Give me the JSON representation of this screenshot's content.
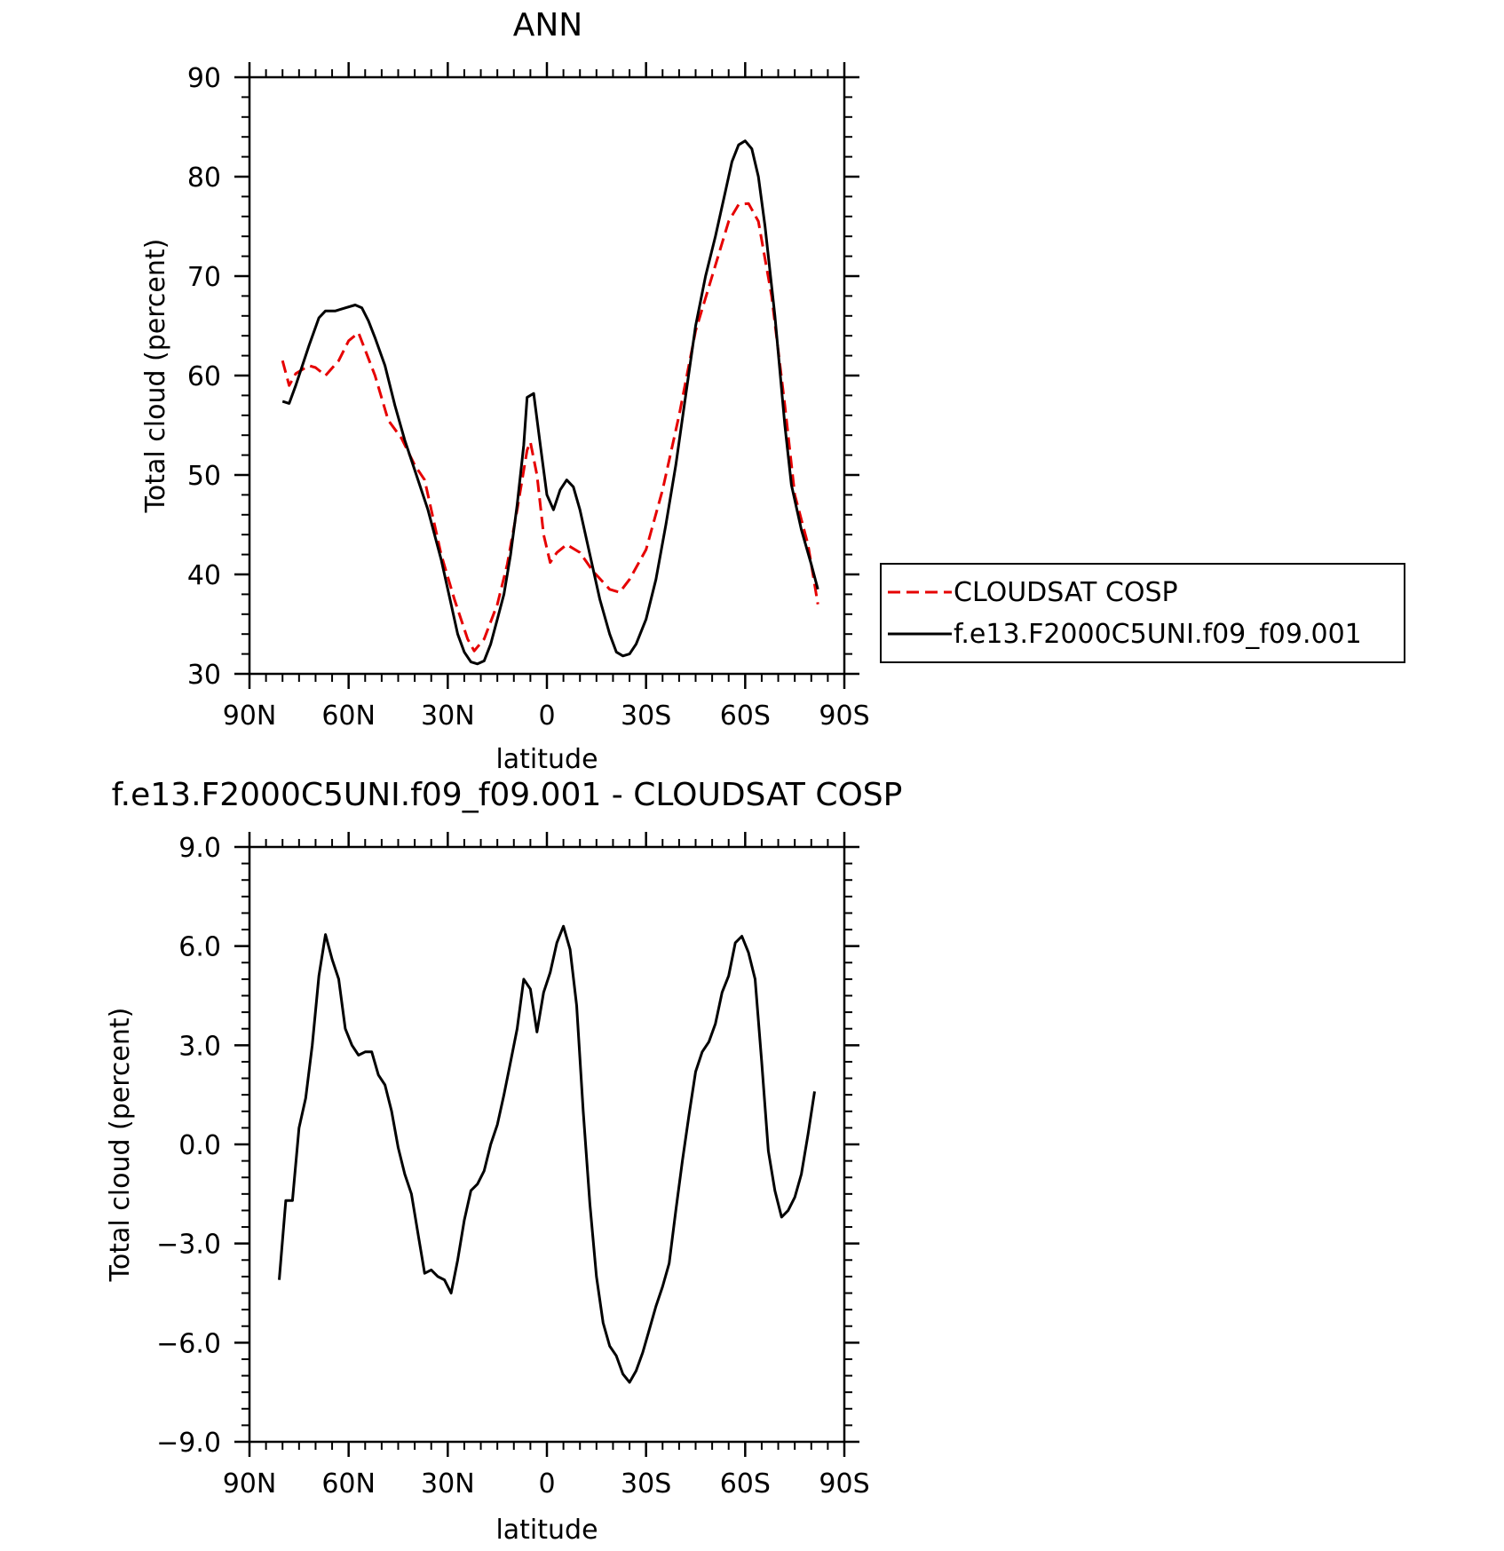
{
  "chart_data": [
    {
      "type": "line",
      "title": "ANN",
      "xlabel": "latitude",
      "ylabel": "Total cloud (percent)",
      "ylim": [
        30,
        90
      ],
      "xlim": [
        90,
        -90
      ],
      "x_unit": "degrees latitude (positive = N, negative = S)",
      "xticks": [
        90,
        60,
        30,
        0,
        -30,
        -60,
        -90
      ],
      "xtick_labels": [
        "90N",
        "60N",
        "30N",
        "0",
        "30S",
        "60S",
        "90S"
      ],
      "yticks": [
        30,
        40,
        50,
        60,
        70,
        80,
        90
      ],
      "ytick_labels": [
        "30",
        "40",
        "50",
        "60",
        "70",
        "80",
        "90"
      ],
      "legend_position": "right",
      "grid": false,
      "series": [
        {
          "name": "CLOUDSAT COSP",
          "color": "#e60000",
          "dash": "dashed",
          "points": [
            [
              80,
              61.5
            ],
            [
              78,
              59.0
            ],
            [
              76,
              60.2
            ],
            [
              72,
              61.0
            ],
            [
              70,
              60.8
            ],
            [
              67,
              60.0
            ],
            [
              63,
              61.5
            ],
            [
              60,
              63.5
            ],
            [
              57,
              64.3
            ],
            [
              52,
              60.0
            ],
            [
              48,
              55.5
            ],
            [
              44,
              53.7
            ],
            [
              40,
              51.0
            ],
            [
              37,
              49.5
            ],
            [
              32,
              42.0
            ],
            [
              28,
              37.5
            ],
            [
              24,
              33.5
            ],
            [
              22,
              32.3
            ],
            [
              19,
              33.5
            ],
            [
              15,
              37.0
            ],
            [
              12,
              41.0
            ],
            [
              9,
              46.5
            ],
            [
              6,
              52.5
            ],
            [
              5,
              53.3
            ],
            [
              3,
              50.0
            ],
            [
              1,
              44.0
            ],
            [
              -1,
              41.2
            ],
            [
              -3,
              42.2
            ],
            [
              -6,
              43.0
            ],
            [
              -10,
              42.2
            ],
            [
              -14,
              40.3
            ],
            [
              -19,
              38.5
            ],
            [
              -22,
              38.2
            ],
            [
              -25,
              39.5
            ],
            [
              -30,
              42.5
            ],
            [
              -35,
              48.5
            ],
            [
              -40,
              56.0
            ],
            [
              -45,
              64.5
            ],
            [
              -50,
              70.0
            ],
            [
              -55,
              75.5
            ],
            [
              -58,
              77.2
            ],
            [
              -61,
              77.3
            ],
            [
              -64,
              75.5
            ],
            [
              -68,
              68.0
            ],
            [
              -72,
              57.0
            ],
            [
              -75,
              48.0
            ],
            [
              -79,
              43.0
            ],
            [
              -82,
              37.0
            ]
          ]
        },
        {
          "name": "f.e13.F2000C5UNI.f09_f09.001",
          "color": "#000000",
          "dash": "solid",
          "points": [
            [
              80,
              57.4
            ],
            [
              78,
              57.2
            ],
            [
              76,
              59.0
            ],
            [
              72,
              63.0
            ],
            [
              69,
              65.8
            ],
            [
              67,
              66.5
            ],
            [
              64,
              66.5
            ],
            [
              61,
              66.8
            ],
            [
              58,
              67.1
            ],
            [
              56,
              66.8
            ],
            [
              54,
              65.5
            ],
            [
              52,
              63.8
            ],
            [
              49,
              61.0
            ],
            [
              46,
              57.0
            ],
            [
              43,
              53.5
            ],
            [
              40,
              50.5
            ],
            [
              36,
              46.5
            ],
            [
              32,
              41.5
            ],
            [
              29,
              37.0
            ],
            [
              27,
              34.0
            ],
            [
              25,
              32.2
            ],
            [
              23,
              31.2
            ],
            [
              21,
              31.0
            ],
            [
              19,
              31.3
            ],
            [
              17,
              33.0
            ],
            [
              15,
              35.5
            ],
            [
              13,
              38.0
            ],
            [
              11,
              42.0
            ],
            [
              9,
              47.0
            ],
            [
              7,
              53.0
            ],
            [
              6,
              57.8
            ],
            [
              4,
              58.2
            ],
            [
              2,
              53.0
            ],
            [
              0,
              48.0
            ],
            [
              -2,
              46.5
            ],
            [
              -4,
              48.5
            ],
            [
              -6,
              49.5
            ],
            [
              -8,
              48.8
            ],
            [
              -10,
              46.5
            ],
            [
              -13,
              42.0
            ],
            [
              -16,
              37.5
            ],
            [
              -19,
              34.0
            ],
            [
              -21,
              32.2
            ],
            [
              -23,
              31.8
            ],
            [
              -25,
              32.0
            ],
            [
              -27,
              33.0
            ],
            [
              -30,
              35.5
            ],
            [
              -33,
              39.5
            ],
            [
              -36,
              45.0
            ],
            [
              -39,
              51.0
            ],
            [
              -42,
              58.0
            ],
            [
              -45,
              65.0
            ],
            [
              -48,
              70.0
            ],
            [
              -51,
              74.0
            ],
            [
              -54,
              78.5
            ],
            [
              -56,
              81.5
            ],
            [
              -58,
              83.2
            ],
            [
              -60,
              83.6
            ],
            [
              -62,
              82.8
            ],
            [
              -64,
              80.0
            ],
            [
              -66,
              75.0
            ],
            [
              -69,
              66.0
            ],
            [
              -72,
              55.0
            ],
            [
              -74,
              49.0
            ],
            [
              -77,
              44.5
            ],
            [
              -80,
              41.0
            ],
            [
              -82,
              38.5
            ]
          ]
        }
      ]
    },
    {
      "type": "line",
      "title": "f.e13.F2000C5UNI.f09_f09.001 - CLOUDSAT COSP",
      "xlabel": "latitude",
      "ylabel": "Total cloud (percent)",
      "ylim": [
        -9,
        9
      ],
      "xlim": [
        90,
        -90
      ],
      "x_unit": "degrees latitude (positive = N, negative = S)",
      "xticks": [
        90,
        60,
        30,
        0,
        -30,
        -60,
        -90
      ],
      "xtick_labels": [
        "90N",
        "60N",
        "30N",
        "0",
        "30S",
        "60S",
        "90S"
      ],
      "yticks": [
        -9,
        -6,
        -3,
        0,
        3,
        6,
        9
      ],
      "ytick_labels": [
        "−9.0",
        "−6.0",
        "−3.0",
        "0.0",
        "3.0",
        "6.0",
        "9.0"
      ],
      "grid": false,
      "series": [
        {
          "color": "#000000",
          "dash": "solid",
          "points": [
            [
              81,
              -4.1
            ],
            [
              79,
              -1.7
            ],
            [
              77,
              -1.7
            ],
            [
              75,
              0.5
            ],
            [
              73,
              1.4
            ],
            [
              71,
              3.0
            ],
            [
              69,
              5.1
            ],
            [
              67,
              6.35
            ],
            [
              65,
              5.6
            ],
            [
              63,
              5.0
            ],
            [
              61,
              3.5
            ],
            [
              59,
              3.0
            ],
            [
              57,
              2.7
            ],
            [
              55,
              2.8
            ],
            [
              53,
              2.8
            ],
            [
              51,
              2.1
            ],
            [
              49,
              1.8
            ],
            [
              47,
              1.0
            ],
            [
              45,
              -0.1
            ],
            [
              43,
              -0.9
            ],
            [
              41,
              -1.5
            ],
            [
              39,
              -2.7
            ],
            [
              37,
              -3.9
            ],
            [
              35,
              -3.8
            ],
            [
              33,
              -4.0
            ],
            [
              31,
              -4.1
            ],
            [
              29,
              -4.5
            ],
            [
              27,
              -3.5
            ],
            [
              25,
              -2.3
            ],
            [
              23,
              -1.4
            ],
            [
              21,
              -1.2
            ],
            [
              19,
              -0.8
            ],
            [
              17,
              0.0
            ],
            [
              15,
              0.6
            ],
            [
              13,
              1.5
            ],
            [
              11,
              2.5
            ],
            [
              9,
              3.5
            ],
            [
              7,
              5.0
            ],
            [
              5,
              4.7
            ],
            [
              3,
              3.4
            ],
            [
              1,
              4.6
            ],
            [
              -1,
              5.2
            ],
            [
              -3,
              6.1
            ],
            [
              -5,
              6.6
            ],
            [
              -7,
              5.9
            ],
            [
              -9,
              4.2
            ],
            [
              -11,
              1.0
            ],
            [
              -13,
              -1.8
            ],
            [
              -15,
              -4.0
            ],
            [
              -17,
              -5.4
            ],
            [
              -19,
              -6.1
            ],
            [
              -21,
              -6.4
            ],
            [
              -23,
              -6.95
            ],
            [
              -25,
              -7.2
            ],
            [
              -27,
              -6.85
            ],
            [
              -29,
              -6.3
            ],
            [
              -31,
              -5.6
            ],
            [
              -33,
              -4.9
            ],
            [
              -35,
              -4.3
            ],
            [
              -37,
              -3.6
            ],
            [
              -39,
              -2.0
            ],
            [
              -41,
              -0.5
            ],
            [
              -43,
              0.9
            ],
            [
              -45,
              2.2
            ],
            [
              -47,
              2.8
            ],
            [
              -49,
              3.1
            ],
            [
              -51,
              3.65
            ],
            [
              -53,
              4.6
            ],
            [
              -55,
              5.1
            ],
            [
              -57,
              6.1
            ],
            [
              -59,
              6.3
            ],
            [
              -61,
              5.8
            ],
            [
              -63,
              5.0
            ],
            [
              -65,
              2.5
            ],
            [
              -67,
              -0.2
            ],
            [
              -69,
              -1.4
            ],
            [
              -71,
              -2.2
            ],
            [
              -73,
              -2.0
            ],
            [
              -75,
              -1.6
            ],
            [
              -77,
              -0.9
            ],
            [
              -79,
              0.3
            ],
            [
              -81,
              1.6
            ]
          ]
        }
      ]
    }
  ]
}
